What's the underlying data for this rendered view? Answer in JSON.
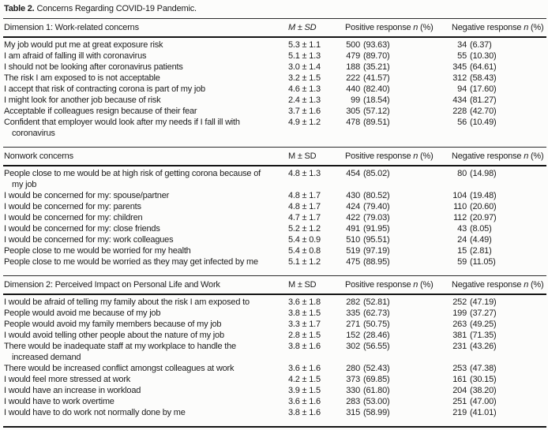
{
  "title": {
    "label": "Table 2.",
    "caption": "Concerns Regarding COVID-19 Pandemic."
  },
  "columns": {
    "msd": "M ± SD",
    "positive_prefix": "Positive response",
    "negative_prefix": "Negative response",
    "n": "n",
    "pct": "(%)"
  },
  "sections": [
    {
      "header": "Dimension 1: Work-related concerns",
      "msd_italic": true,
      "rows": [
        {
          "label": "My job would put me at great exposure risk",
          "msd": "5.3 ± 1.1",
          "pos_n": "500",
          "pos_pct": "(93.63)",
          "neg_n": "34",
          "neg_pct": "(6.37)"
        },
        {
          "label": "I am afraid of falling ill with coronavirus",
          "msd": "5.1 ± 1.3",
          "pos_n": "479",
          "pos_pct": "(89.70)",
          "neg_n": "55",
          "neg_pct": "(10.30)"
        },
        {
          "label": "I should not be looking after coronavirus patients",
          "msd": "3.0 ± 1.4",
          "pos_n": "188",
          "pos_pct": "(35.21)",
          "neg_n": "345",
          "neg_pct": "(64.61)"
        },
        {
          "label": "The risk I am exposed to is not acceptable",
          "msd": "3.2 ± 1.5",
          "pos_n": "222",
          "pos_pct": "(41.57)",
          "neg_n": "312",
          "neg_pct": "(58.43)"
        },
        {
          "label": "I accept that risk of contracting corona is part of my job",
          "msd": "4.6 ± 1.3",
          "pos_n": "440",
          "pos_pct": "(82.40)",
          "neg_n": "94",
          "neg_pct": "(17.60)"
        },
        {
          "label": "I might look for another job because of risk",
          "msd": "2.4 ± 1.3",
          "pos_n": "99",
          "pos_pct": "(18.54)",
          "neg_n": "434",
          "neg_pct": "(81.27)"
        },
        {
          "label": "Acceptable if colleagues resign because of their fear",
          "msd": "3.7 ± 1.6",
          "pos_n": "305",
          "pos_pct": "(57.12)",
          "neg_n": "228",
          "neg_pct": "(42.70)"
        },
        {
          "label": "Confident that employer would look after my needs if I fall ill with",
          "label_cont": "coronavirus",
          "msd": "4.9 ± 1.2",
          "pos_n": "478",
          "pos_pct": "(89.51)",
          "neg_n": "56",
          "neg_pct": "(10.49)"
        }
      ]
    },
    {
      "header": "Nonwork concerns",
      "msd_italic": false,
      "rows": [
        {
          "label": "People close to me would be at high risk of getting corona because of",
          "label_cont": "my job",
          "msd": "4.8 ± 1.3",
          "pos_n": "454",
          "pos_pct": "(85.02)",
          "neg_n": "80",
          "neg_pct": "(14.98)"
        },
        {
          "label": "I would be concerned for my: spouse/partner",
          "msd": "4.8 ± 1.7",
          "pos_n": "430",
          "pos_pct": "(80.52)",
          "neg_n": "104",
          "neg_pct": "(19.48)"
        },
        {
          "label": "I would be concerned for my: parents",
          "msd": "4.8 ± 1.7",
          "pos_n": "424",
          "pos_pct": "(79.40)",
          "neg_n": "110",
          "neg_pct": "(20.60)"
        },
        {
          "label": "I would be concerned for my: children",
          "msd": "4.7 ± 1.7",
          "pos_n": "422",
          "pos_pct": "(79.03)",
          "neg_n": "112",
          "neg_pct": "(20.97)"
        },
        {
          "label": "I would be concerned for my: close friends",
          "msd": "5.2 ± 1.2",
          "pos_n": "491",
          "pos_pct": "(91.95)",
          "neg_n": "43",
          "neg_pct": "(8.05)"
        },
        {
          "label": "I would be concerned for my: work colleagues",
          "msd": "5.4 ± 0.9",
          "pos_n": "510",
          "pos_pct": "(95.51)",
          "neg_n": "24",
          "neg_pct": "(4.49)"
        },
        {
          "label": "People close to me would be worried for my health",
          "msd": "5.4 ± 0.8",
          "pos_n": "519",
          "pos_pct": "(97.19)",
          "neg_n": "15",
          "neg_pct": "(2.81)"
        },
        {
          "label": "People close to me would be worried as they may get infected by me",
          "msd": "5.1 ± 1.2",
          "pos_n": "475",
          "pos_pct": "(88.95)",
          "neg_n": "59",
          "neg_pct": "(11.05)"
        }
      ]
    },
    {
      "header": "Dimension 2: Perceived Impact on Personal Life and Work",
      "msd_italic": false,
      "rows": [
        {
          "label": "I would be afraid of telling my family about the risk I am exposed to",
          "msd": "3.6 ± 1.8",
          "pos_n": "282",
          "pos_pct": "(52.81)",
          "neg_n": "252",
          "neg_pct": "(47.19)"
        },
        {
          "label": "People would avoid me because of my job",
          "msd": "3.8 ± 1.5",
          "pos_n": "335",
          "pos_pct": "(62.73)",
          "neg_n": "199",
          "neg_pct": "(37.27)"
        },
        {
          "label": "People would avoid my family members because of my job",
          "msd": "3.3 ± 1.7",
          "pos_n": "271",
          "pos_pct": "(50.75)",
          "neg_n": "263",
          "neg_pct": "(49.25)"
        },
        {
          "label": "I would avoid telling other people about the nature of my job",
          "msd": "2.8 ± 1.5",
          "pos_n": "152",
          "pos_pct": "(28.46)",
          "neg_n": "381",
          "neg_pct": "(71.35)"
        },
        {
          "label": "There would be inadequate staff at my workplace to handle the",
          "label_cont": "increased demand",
          "msd": "3.8 ± 1.6",
          "pos_n": "302",
          "pos_pct": "(56.55)",
          "neg_n": "231",
          "neg_pct": "(43.26)"
        },
        {
          "label": "There would be increased conflict amongst colleagues at work",
          "msd": "3.6 ± 1.6",
          "pos_n": "280",
          "pos_pct": "(52.43)",
          "neg_n": "253",
          "neg_pct": "(47.38)"
        },
        {
          "label": "I would feel more stressed at work",
          "msd": "4.2 ± 1.5",
          "pos_n": "373",
          "pos_pct": "(69.85)",
          "neg_n": "161",
          "neg_pct": "(30.15)"
        },
        {
          "label": "I would have an increase in workload",
          "msd": "3.9 ± 1.5",
          "pos_n": "330",
          "pos_pct": "(61.80)",
          "neg_n": "204",
          "neg_pct": "(38.20)"
        },
        {
          "label": "I would have to work overtime",
          "msd": "3.6 ± 1.6",
          "pos_n": "283",
          "pos_pct": "(53.00)",
          "neg_n": "251",
          "neg_pct": "(47.00)"
        },
        {
          "label": "I would have to do work not normally done by me",
          "msd": "3.8 ± 1.6",
          "pos_n": "315",
          "pos_pct": "(58.99)",
          "neg_n": "219",
          "neg_pct": "(41.01)"
        }
      ]
    }
  ]
}
